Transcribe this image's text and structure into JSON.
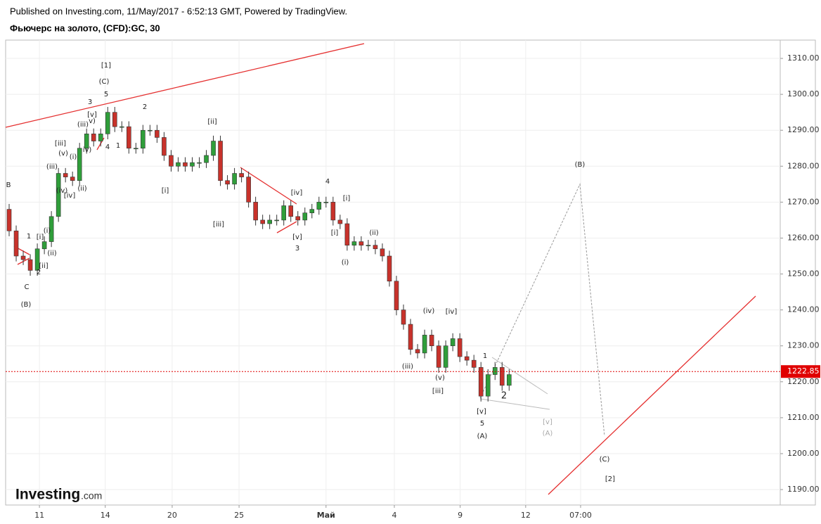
{
  "header": {
    "published": "Published on Investing.com, 11/May/2017 - 6:52:13 GMT, Powered by TradingView.",
    "title": "Фьючерс на золото, (CFD):GC, 30"
  },
  "logo": {
    "brand": "Investing",
    "suffix": ".com"
  },
  "chart_data": {
    "type": "candlestick",
    "up_color": "#2f9e3a",
    "down_color": "#c8322b",
    "grid": true,
    "last_price": 1222.85,
    "last_price_color": "#e00000",
    "x": [
      1,
      3,
      5,
      7,
      9,
      11,
      13,
      15,
      17,
      19,
      21,
      23,
      25,
      27,
      29,
      31,
      33,
      35,
      37,
      39,
      41,
      43,
      45,
      47,
      49,
      51,
      53,
      55,
      57,
      59,
      61,
      63,
      65,
      67,
      69,
      71,
      73,
      75,
      77,
      79,
      81,
      83,
      85,
      87,
      89,
      91,
      93,
      95,
      97,
      99,
      101,
      103,
      105,
      107,
      109,
      111,
      113,
      115,
      117,
      119,
      121,
      123,
      125,
      127,
      129,
      131,
      133,
      135,
      137,
      139,
      141,
      143
    ],
    "open": [
      1268,
      1262,
      1255,
      1254,
      1251,
      1257,
      1259,
      1266,
      1278,
      1277,
      1276,
      1285,
      1289,
      1287,
      1289,
      1295,
      1291,
      1291,
      1285,
      1285,
      1290,
      1290,
      1288,
      1283,
      1280,
      1281,
      1280,
      1281,
      1281,
      1283,
      1287,
      1276,
      1275,
      1278,
      1277,
      1270,
      1265,
      1264,
      1265,
      1265,
      1269,
      1266,
      1265,
      1267,
      1268,
      1270,
      1270,
      1265,
      1264,
      1258,
      1259,
      1258,
      1258,
      1257,
      1255,
      1248,
      1240,
      1236,
      1229,
      1228,
      1233,
      1230,
      1224,
      1230,
      1232,
      1227,
      1226,
      1224,
      1216,
      1222,
      1224,
      1219
    ],
    "high": [
      1269.5,
      1263.5,
      1256.5,
      1255.5,
      1258.5,
      1260.5,
      1267.5,
      1279.5,
      1279.5,
      1278.5,
      1286.5,
      1290.5,
      1290.5,
      1290.5,
      1296.5,
      1296.5,
      1292.5,
      1292.5,
      1286.5,
      1291.5,
      1291.5,
      1291.5,
      1289.5,
      1284.5,
      1282.5,
      1282.5,
      1282.5,
      1282.5,
      1284.5,
      1288.5,
      1288.5,
      1277.5,
      1279.5,
      1279.5,
      1278.5,
      1271.5,
      1266.5,
      1266.5,
      1266.5,
      1270.5,
      1270.5,
      1267.5,
      1268.5,
      1269.5,
      1271.5,
      1271.5,
      1271.5,
      1266.5,
      1265.5,
      1260.5,
      1260.5,
      1259.5,
      1259.5,
      1258.5,
      1256.5,
      1249.5,
      1241.5,
      1237.5,
      1230.5,
      1234.5,
      1234.5,
      1231.5,
      1231.5,
      1233.5,
      1233.5,
      1228.5,
      1227.5,
      1225.5,
      1223.5,
      1225.5,
      1225.5,
      1223.5
    ],
    "low": [
      1260.5,
      1253.5,
      1252.5,
      1249.5,
      1249.5,
      1255.5,
      1257.5,
      1264.5,
      1275.5,
      1274.5,
      1274.5,
      1283.5,
      1285.5,
      1285.5,
      1287.5,
      1289.5,
      1289.5,
      1283.5,
      1283.5,
      1283.5,
      1288.5,
      1286.5,
      1281.5,
      1278.5,
      1278.5,
      1278.5,
      1278.5,
      1279.5,
      1279.5,
      1281.5,
      1274.5,
      1273.5,
      1273.5,
      1275.5,
      1268.5,
      1263.5,
      1262.5,
      1262.5,
      1263.5,
      1263.5,
      1264.5,
      1263.5,
      1263.5,
      1265.5,
      1266.5,
      1268.5,
      1263.5,
      1262.5,
      1256.5,
      1256.5,
      1256.5,
      1256.5,
      1255.5,
      1253.5,
      1246.5,
      1238.5,
      1234.5,
      1227.5,
      1226.5,
      1226.5,
      1228.5,
      1222.5,
      1222.5,
      1228.5,
      1225.5,
      1224.5,
      1222.5,
      1214.5,
      1214.5,
      1220.5,
      1217.5,
      1217.5
    ],
    "close": [
      1262,
      1255,
      1254,
      1251,
      1257,
      1259,
      1266,
      1278,
      1277,
      1276,
      1285,
      1289,
      1287,
      1289,
      1295,
      1291,
      1291,
      1285,
      1285,
      1290,
      1290,
      1288,
      1283,
      1280,
      1281,
      1280,
      1281,
      1281,
      1283,
      1287,
      1276,
      1275,
      1278,
      1277,
      1270,
      1265,
      1264,
      1265,
      1265,
      1269,
      1266,
      1265,
      1267,
      1268,
      1270,
      1270,
      1265,
      1264,
      1258,
      1259,
      1258,
      1258,
      1257,
      1255,
      1248,
      1240,
      1236,
      1229,
      1228,
      1233,
      1230,
      1224,
      1230,
      1232,
      1227,
      1226,
      1224,
      1216,
      1222,
      1224,
      1219,
      1222
    ],
    "xlim": [
      0,
      220
    ],
    "xticks": [
      {
        "value": 9.6,
        "label": "11"
      },
      {
        "value": 28.3,
        "label": "14"
      },
      {
        "value": 47.3,
        "label": "20"
      },
      {
        "value": 66.3,
        "label": "25"
      },
      {
        "value": 91.0,
        "label": "Май"
      },
      {
        "value": 110.4,
        "label": "4"
      },
      {
        "value": 129.1,
        "label": "9"
      },
      {
        "value": 147.7,
        "label": "12"
      },
      {
        "value": 163.3,
        "label": "07:00"
      }
    ],
    "ylim": [
      1185.7,
      1315.1
    ],
    "yticks": [
      {
        "value": 1190,
        "label": "1190.00"
      },
      {
        "value": 1200,
        "label": "1200.00"
      },
      {
        "value": 1210,
        "label": "1210.00"
      },
      {
        "value": 1220,
        "label": "1220.00"
      },
      {
        "value": 1230,
        "label": "1230.00"
      },
      {
        "value": 1240,
        "label": "1240.00"
      },
      {
        "value": 1250,
        "label": "1250.00"
      },
      {
        "value": 1260,
        "label": "1260.00"
      },
      {
        "value": 1270,
        "label": "1270.00"
      },
      {
        "value": 1280,
        "label": "1280.00"
      },
      {
        "value": 1290,
        "label": "1290.00"
      },
      {
        "value": 1300,
        "label": "1300.00"
      },
      {
        "value": 1310,
        "label": "1310.00"
      }
    ],
    "annotations": [
      "B",
      "1",
      "[i]",
      "(i)",
      "(ii)",
      "[ii]",
      "2",
      "C",
      "(B)",
      "[iii]",
      "(v)",
      "(i)",
      "(iii)",
      "(iv)",
      "[iv]",
      "(ii)",
      "(iii)",
      "[v]",
      "v)",
      "iv)",
      "3",
      "4",
      "1",
      "[1]",
      "(C)",
      "5",
      "2",
      "[i]",
      "[ii]",
      "[iii]",
      "[iv]",
      "[v]",
      "3",
      "4",
      "[i]",
      "[i]",
      "(ii)",
      "(i)",
      "(iii)",
      "(iv)",
      "[iv]",
      "(v)",
      "[iii]",
      "1",
      "2",
      "[v]",
      "5",
      "(A)",
      "[v]",
      "(A)",
      "(B)",
      "(C)",
      "[2]"
    ]
  }
}
